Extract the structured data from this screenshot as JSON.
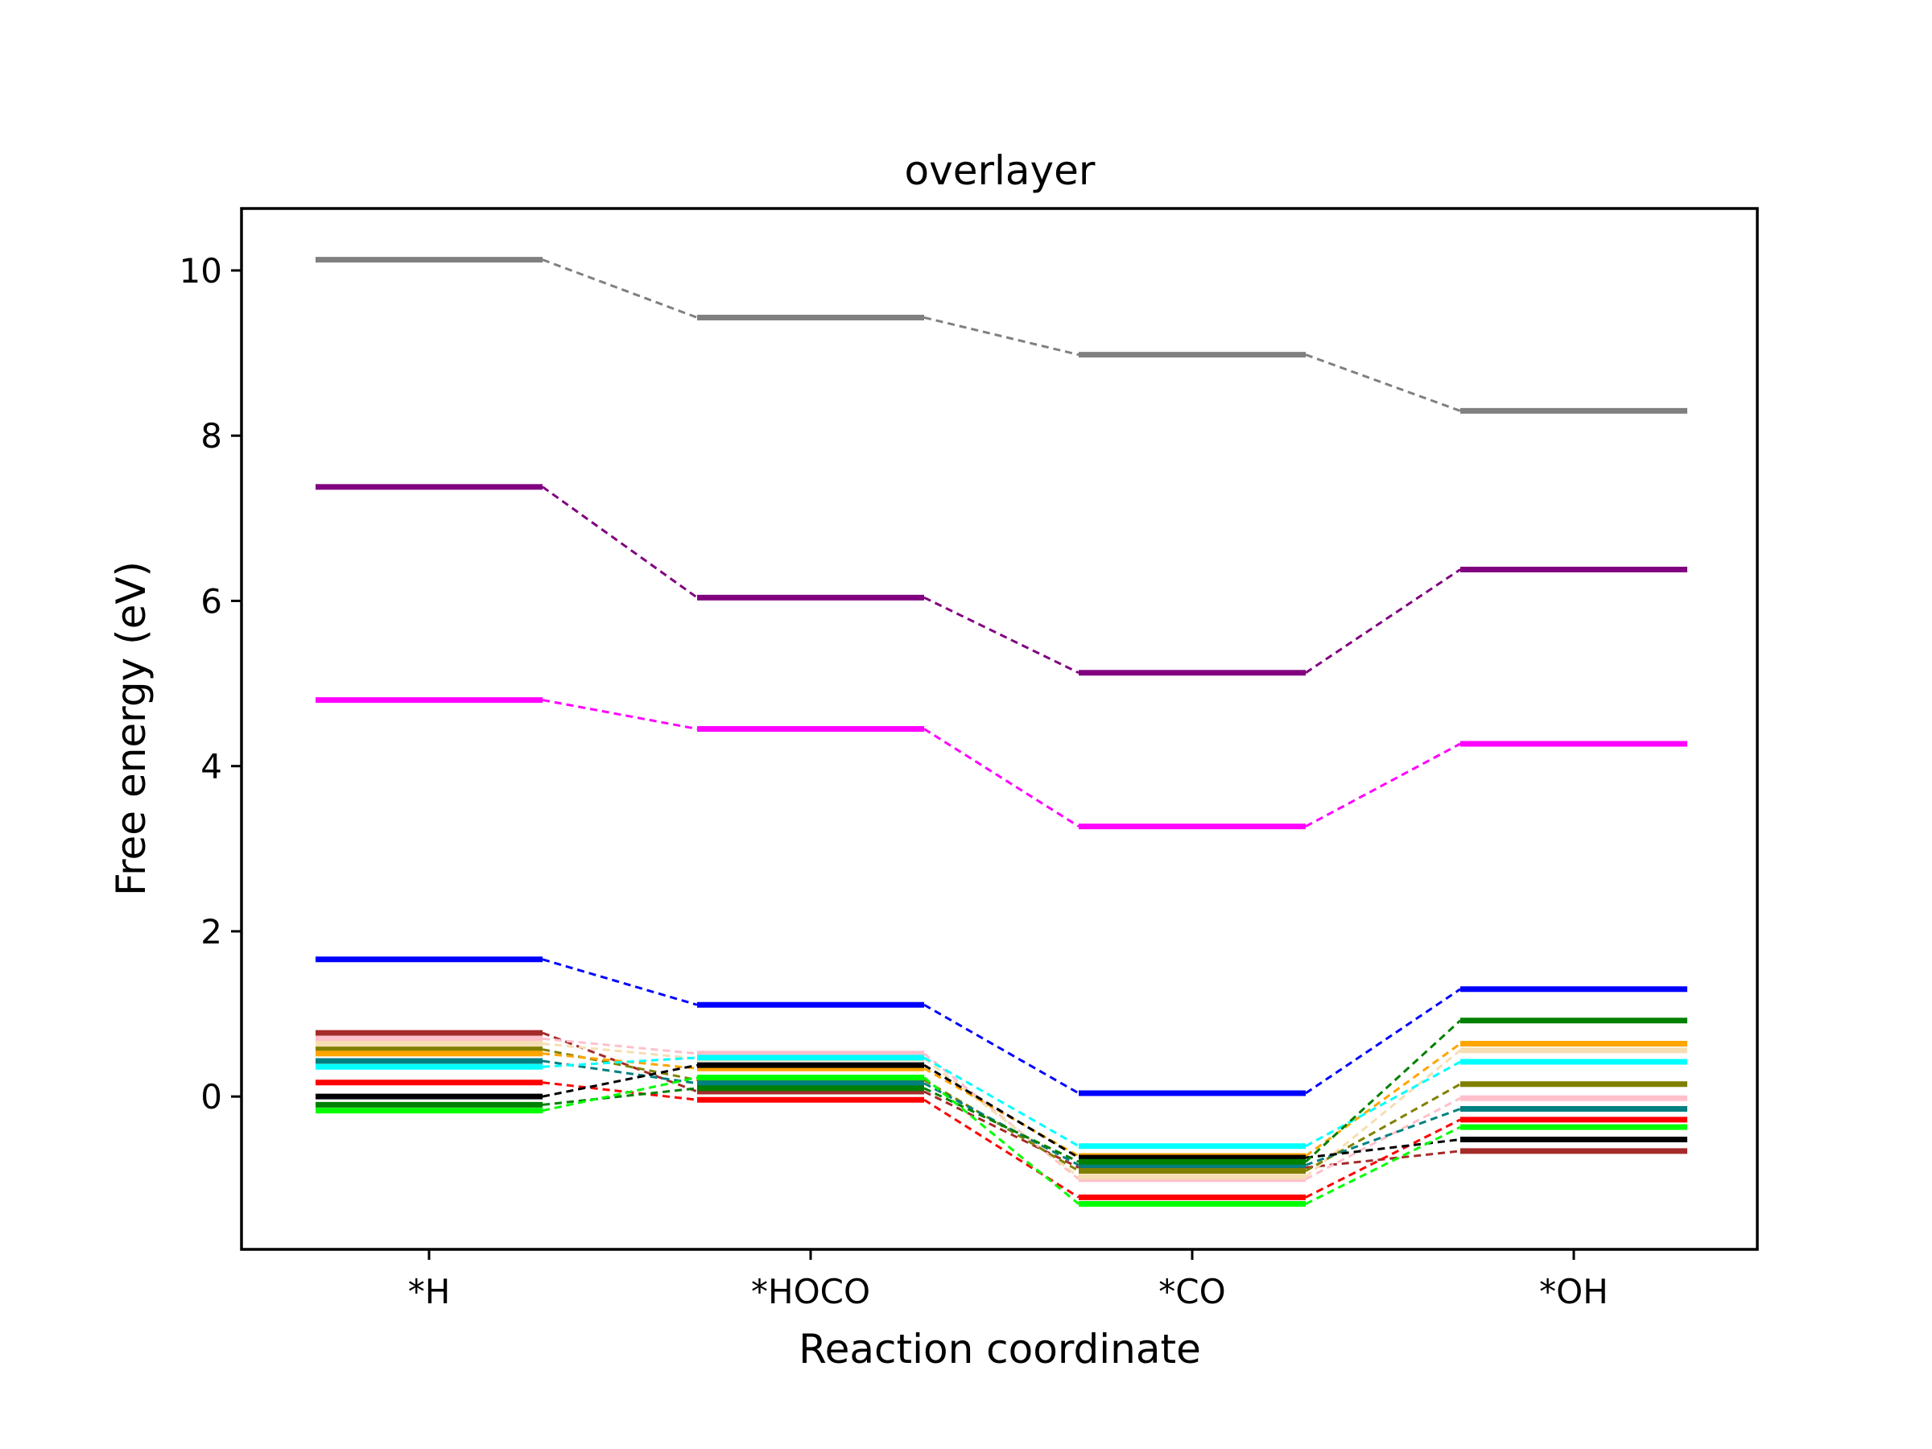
{
  "chart_data": {
    "type": "line",
    "title": "overlayer",
    "xlabel": "Reaction coordinate",
    "ylabel": "Free energy (eV)",
    "categories": [
      "*H",
      "*HOCO",
      "*CO",
      "*OH"
    ],
    "ylim": [
      -1.85,
      10.75
    ],
    "yticks": [
      0,
      2,
      4,
      6,
      8,
      10
    ],
    "yticklabels": [
      "0",
      "2",
      "4",
      "6",
      "8",
      "10"
    ],
    "grid": false,
    "legend": "none",
    "line_style": "levels joined by dashed connectors",
    "series": [
      {
        "color": "#808080",
        "values": [
          10.13,
          9.43,
          8.98,
          8.3
        ]
      },
      {
        "color": "#800080",
        "values": [
          7.38,
          6.04,
          5.13,
          6.38
        ]
      },
      {
        "color": "#ff00ff",
        "values": [
          4.8,
          4.45,
          3.27,
          4.27
        ]
      },
      {
        "color": "#0000ff",
        "values": [
          1.66,
          1.11,
          0.04,
          1.3
        ]
      },
      {
        "color": "#a52a2a",
        "values": [
          0.77,
          0.06,
          -0.86,
          -0.66
        ]
      },
      {
        "color": "#ffc0cb",
        "values": [
          0.7,
          0.52,
          -1.0,
          -0.02
        ]
      },
      {
        "color": "#f5deb3",
        "values": [
          0.64,
          0.46,
          -0.97,
          0.56
        ]
      },
      {
        "color": "#808000",
        "values": [
          0.57,
          0.2,
          -0.9,
          0.15
        ]
      },
      {
        "color": "#ffa500",
        "values": [
          0.52,
          0.34,
          -0.72,
          0.64
        ]
      },
      {
        "color": "#008080",
        "values": [
          0.43,
          0.16,
          -0.83,
          -0.15
        ]
      },
      {
        "color": "#00ffff",
        "values": [
          0.36,
          0.47,
          -0.6,
          0.42
        ]
      },
      {
        "color": "#ff0000",
        "values": [
          0.17,
          -0.04,
          -1.22,
          -0.28
        ]
      },
      {
        "color": "#000000",
        "values": [
          0.0,
          0.38,
          -0.74,
          -0.52
        ]
      },
      {
        "color": "#008000",
        "values": [
          -0.1,
          0.1,
          -0.79,
          0.92
        ]
      },
      {
        "color": "#00ff00",
        "values": [
          -0.17,
          0.23,
          -1.3,
          -0.37
        ]
      }
    ]
  }
}
